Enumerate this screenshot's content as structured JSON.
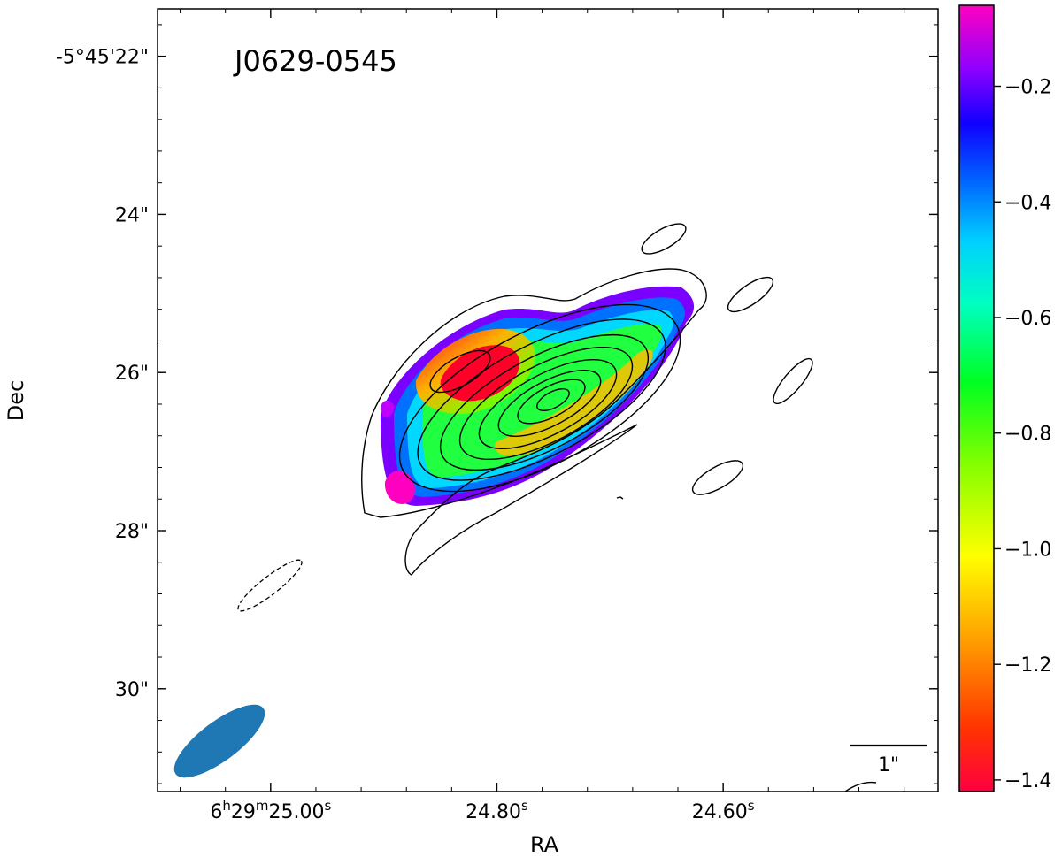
{
  "chart_data": {
    "type": "heatmap",
    "source_name": "J0629-0545",
    "xlabel": "RA",
    "ylabel": "Dec",
    "x_ticks": [
      {
        "value": 25.0,
        "label_main": "6",
        "label_sup1": "h",
        "label_mid": "29",
        "label_sup2": "m",
        "label_sec": "25.00",
        "label_sup3": "s"
      },
      {
        "value": 24.8,
        "label_sec": "24.80",
        "label_sup3": "s"
      },
      {
        "value": 24.6,
        "label_sec": "24.60",
        "label_sup3": "s"
      }
    ],
    "y_ticks": [
      {
        "value": 22,
        "label": "-5°45'22\""
      },
      {
        "value": 24,
        "label": "24\""
      },
      {
        "value": 26,
        "label": "26\""
      },
      {
        "value": 28,
        "label": "28\""
      },
      {
        "value": 30,
        "label": "30\""
      }
    ],
    "xlim": [
      25.1,
      24.41
    ],
    "ylim": [
      31.3,
      21.4
    ],
    "colorbar": {
      "vmin": -1.42,
      "vmax": -0.06,
      "ticks": [
        -0.2,
        -0.4,
        -0.6,
        -0.8,
        -1.0,
        -1.2,
        -1.4
      ],
      "tick_labels": [
        "−0.2",
        "−0.4",
        "−0.6",
        "−0.8",
        "−1.0",
        "−1.2",
        "−1.4"
      ],
      "colormap": "gist_rainbow"
    },
    "scalebar": {
      "label": "1\"",
      "length_arcsec": 1
    },
    "beam": {
      "color": "#1f77b4"
    },
    "contour_levels": 9,
    "grid": false
  }
}
